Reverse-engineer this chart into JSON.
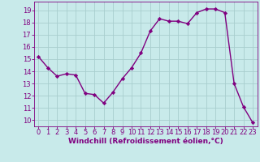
{
  "x": [
    0,
    1,
    2,
    3,
    4,
    5,
    6,
    7,
    8,
    9,
    10,
    11,
    12,
    13,
    14,
    15,
    16,
    17,
    18,
    19,
    20,
    21,
    22,
    23
  ],
  "y": [
    15.2,
    14.3,
    13.6,
    13.8,
    13.7,
    12.2,
    12.1,
    11.4,
    12.3,
    13.4,
    14.3,
    15.5,
    17.3,
    18.3,
    18.1,
    18.1,
    17.9,
    18.8,
    19.1,
    19.1,
    18.8,
    13.0,
    11.1,
    9.8
  ],
  "line_color": "#800080",
  "marker": "D",
  "marker_size": 2.2,
  "bg_color": "#c8eaea",
  "grid_color": "#a8cece",
  "xlabel": "Windchill (Refroidissement éolien,°C)",
  "ylabel": "",
  "ylim": [
    9.5,
    19.7
  ],
  "xlim": [
    -0.5,
    23.5
  ],
  "yticks": [
    10,
    11,
    12,
    13,
    14,
    15,
    16,
    17,
    18,
    19
  ],
  "xticks": [
    0,
    1,
    2,
    3,
    4,
    5,
    6,
    7,
    8,
    9,
    10,
    11,
    12,
    13,
    14,
    15,
    16,
    17,
    18,
    19,
    20,
    21,
    22,
    23
  ],
  "tick_color": "#800080",
  "label_color": "#800080",
  "line_width": 1.0,
  "tick_fontsize": 6.0,
  "xlabel_fontsize": 6.5
}
